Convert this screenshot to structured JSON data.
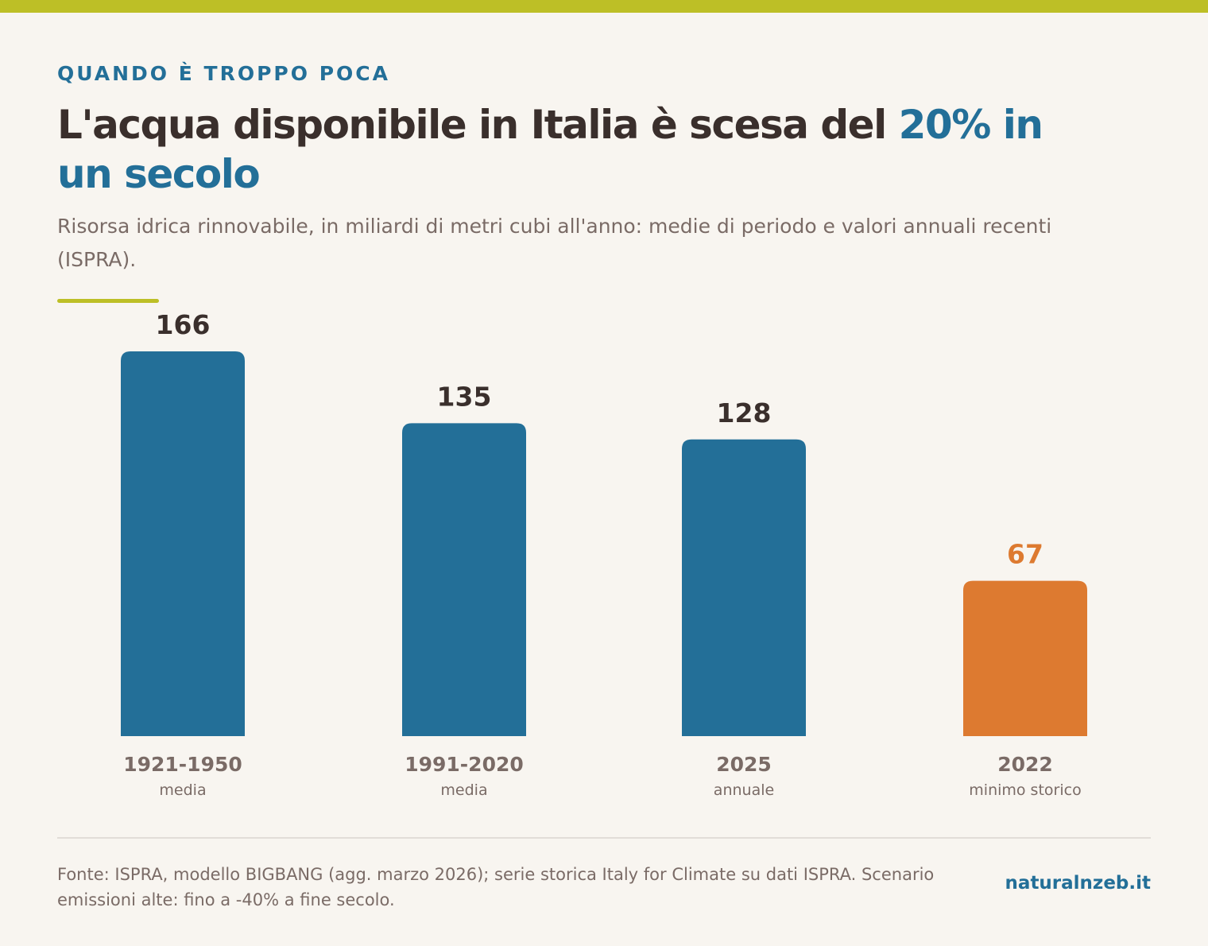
{
  "header": {
    "kicker": "QUANDO È TROPPO POCA",
    "title_main": "L'acqua disponibile in Italia è scesa del ",
    "title_highlight": "20% in un secolo",
    "subtitle": "Risorsa idrica rinnovabile, in miliardi di metri cubi all'anno: medie di periodo e valori annuali recenti (ISPRA)."
  },
  "colors": {
    "accent": "#bdbf26",
    "primary": "#236f98",
    "highlight": "#dd7a30",
    "text_dark": "#3a2f2c",
    "text_muted": "#7a6b66"
  },
  "chart_data": {
    "type": "bar",
    "categories": [
      "1921-1950",
      "1991-2020",
      "2025",
      "2022"
    ],
    "sublabels": [
      "media",
      "media",
      "annuale",
      "minimo storico"
    ],
    "values": [
      166,
      135,
      128,
      67
    ],
    "value_labels": [
      "166",
      "135",
      "128",
      "67"
    ],
    "highlighted_index": 3,
    "ylim": [
      0,
      166
    ],
    "grid": false,
    "legend": "none"
  },
  "footer": {
    "source": "Fonte: ISPRA, modello BIGBANG (agg. marzo 2026); serie storica Italy for Climate su dati ISPRA. Scenario emissioni alte: fino a -40% a fine secolo.",
    "brand": "naturalnzeb.it"
  }
}
